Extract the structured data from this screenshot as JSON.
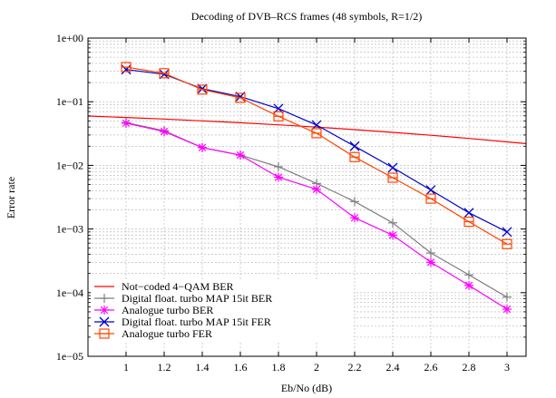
{
  "chart_data": {
    "type": "line",
    "title": "Decoding of DVB–RCS frames (48 symbols, R=1/2)",
    "xlabel": "Eb/No (dB)",
    "ylabel": "Error rate",
    "xlim": [
      0.8,
      3.1
    ],
    "ylim": [
      1e-05,
      1
    ],
    "yscale": "log",
    "x_ticks": [
      1,
      1.2,
      1.4,
      1.6,
      1.8,
      2,
      2.2,
      2.4,
      2.6,
      2.8,
      3
    ],
    "x_tick_labels": [
      "1",
      "1.2",
      "1.4",
      "1.6",
      "1.8",
      "2",
      "2.2",
      "2.4",
      "2.6",
      "2.8",
      "3"
    ],
    "y_ticks": [
      1,
      0.1,
      0.01,
      0.001,
      0.0001,
      1e-05
    ],
    "y_tick_labels": [
      "1e+00",
      "1e−01",
      "1e−02",
      "1e−03",
      "1e−04",
      "1e−05"
    ],
    "grid": true,
    "legend_position": "bottom-left",
    "series": [
      {
        "name": "Not−coded 4−QAM BER",
        "color": "#ff0000",
        "marker": "none",
        "x": [
          0.8,
          1.0,
          1.2,
          1.4,
          1.6,
          1.8,
          2.0,
          2.2,
          2.4,
          2.6,
          2.8,
          3.0,
          3.1
        ],
        "y": [
          0.0595,
          0.0565,
          0.0534,
          0.0501,
          0.0467,
          0.0433,
          0.0399,
          0.0364,
          0.033,
          0.0297,
          0.0265,
          0.0234,
          0.022
        ]
      },
      {
        "name": "Digital float. turbo MAP 15it BER",
        "color": "#808080",
        "marker": "plus",
        "x": [
          1.0,
          1.2,
          1.4,
          1.6,
          1.8,
          2.0,
          2.2,
          2.4,
          2.6,
          2.8,
          3.0
        ],
        "y": [
          0.047,
          0.035,
          0.019,
          0.0145,
          0.0095,
          0.0052,
          0.0027,
          0.00125,
          0.00042,
          0.00019,
          8.5e-05
        ]
      },
      {
        "name": "Analogue turbo BER",
        "color": "#ff00ff",
        "marker": "star",
        "x": [
          1.0,
          1.2,
          1.4,
          1.6,
          1.8,
          2.0,
          2.2,
          2.4,
          2.6,
          2.8,
          3.0
        ],
        "y": [
          0.046,
          0.034,
          0.019,
          0.0145,
          0.0065,
          0.0042,
          0.0015,
          0.0008,
          0.0003,
          0.00013,
          5.5e-05
        ]
      },
      {
        "name": "Digital float. turbo MAP 15it FER",
        "color": "#0000cc",
        "marker": "x",
        "x": [
          1.0,
          1.2,
          1.4,
          1.6,
          1.8,
          2.0,
          2.2,
          2.4,
          2.6,
          2.8,
          3.0
        ],
        "y": [
          0.32,
          0.27,
          0.16,
          0.12,
          0.078,
          0.043,
          0.02,
          0.0092,
          0.0041,
          0.0018,
          0.0009
        ]
      },
      {
        "name": "Analogue turbo FER",
        "color": "#ff4500",
        "marker": "square",
        "x": [
          1.0,
          1.2,
          1.4,
          1.6,
          1.8,
          2.0,
          2.2,
          2.4,
          2.6,
          2.8,
          3.0
        ],
        "y": [
          0.35,
          0.28,
          0.155,
          0.115,
          0.059,
          0.032,
          0.0135,
          0.0064,
          0.003,
          0.0013,
          0.00058
        ]
      }
    ]
  }
}
